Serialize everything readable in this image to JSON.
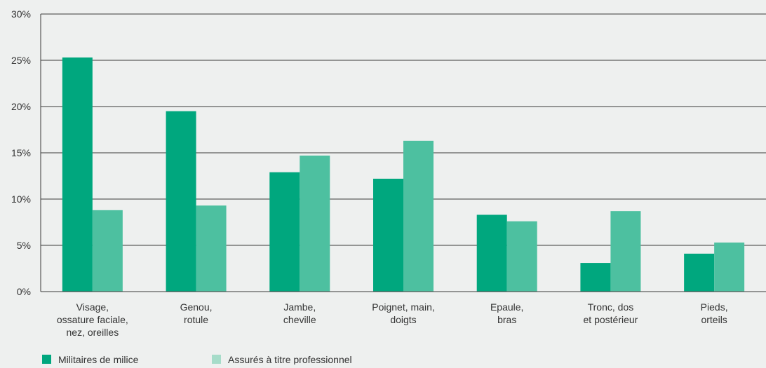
{
  "chart_data": {
    "type": "bar",
    "categories": [
      [
        "Visage,",
        "ossature faciale,",
        "nez, oreilles"
      ],
      [
        "Genou,",
        "rotule"
      ],
      [
        "Jambe,",
        "cheville"
      ],
      [
        "Poignet, main,",
        "doigts"
      ],
      [
        "Epaule,",
        "bras"
      ],
      [
        "Tronc, dos",
        "et postérieur"
      ],
      [
        "Pieds,",
        "orteils"
      ]
    ],
    "series": [
      {
        "name": "Militaires de milice",
        "color": "#00a77e",
        "values": [
          25.3,
          19.5,
          12.9,
          12.2,
          8.3,
          3.1,
          4.1
        ]
      },
      {
        "name": "Assurés à titre professionnel",
        "color": "#4dc0a0",
        "values": [
          8.8,
          9.3,
          14.7,
          16.3,
          7.6,
          8.7,
          5.3
        ]
      }
    ],
    "legend_colors": [
      "#00a77e",
      "#a6dcc9"
    ],
    "yticks": [
      "0%",
      "5%",
      "10%",
      "15%",
      "20%",
      "25%",
      "30%"
    ],
    "ylim": [
      0,
      30
    ],
    "grid": true,
    "legend_position": "bottom-left"
  }
}
